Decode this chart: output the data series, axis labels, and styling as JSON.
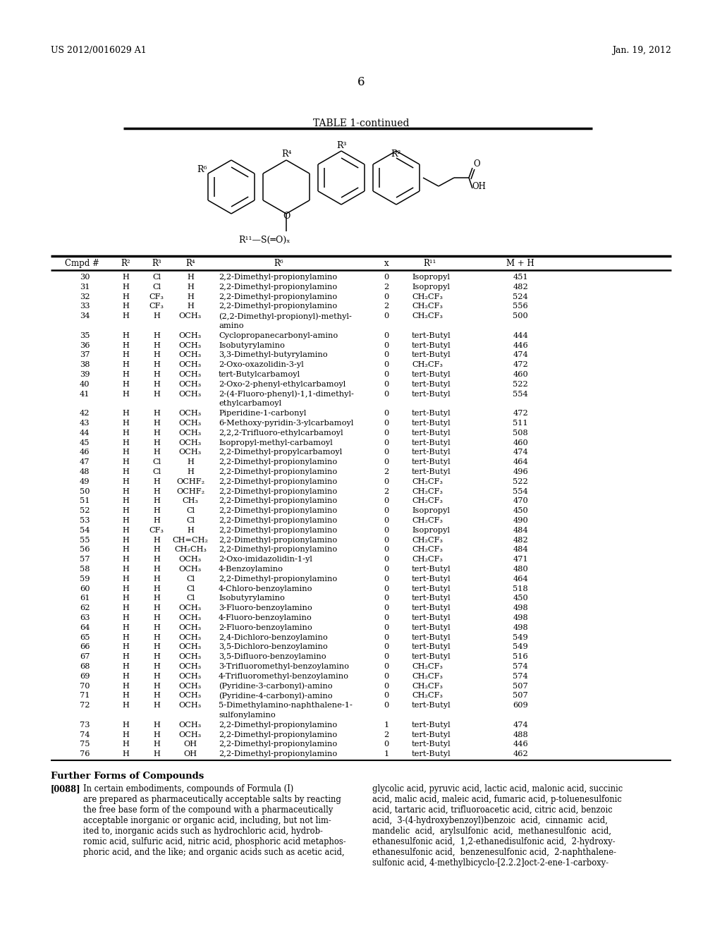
{
  "header_left": "US 2012/0016029 A1",
  "header_right": "Jan. 19, 2012",
  "page_number": "6",
  "table_title": "TABLE 1-continued",
  "rows": [
    [
      "30",
      "H",
      "Cl",
      "H",
      "2,2-Dimethyl-propionylamino",
      "0",
      "Isopropyl",
      "451",
      false
    ],
    [
      "31",
      "H",
      "Cl",
      "H",
      "2,2-Dimethyl-propionylamino",
      "2",
      "Isopropyl",
      "482",
      false
    ],
    [
      "32",
      "H",
      "CF₃",
      "H",
      "2,2-Dimethyl-propionylamino",
      "0",
      "CH₂CF₃",
      "524",
      false
    ],
    [
      "33",
      "H",
      "CF₃",
      "H",
      "2,2-Dimethyl-propionylamino",
      "2",
      "CH₂CF₃",
      "556",
      false
    ],
    [
      "34",
      "H",
      "H",
      "OCH₃",
      "(2,2-Dimethyl-propionyl)-methyl-",
      "0",
      "CH₂CF₃",
      "500",
      "amino"
    ],
    [
      "35",
      "H",
      "H",
      "OCH₃",
      "Cyclopropanecarbonyl-amino",
      "0",
      "tert-Butyl",
      "444",
      false
    ],
    [
      "36",
      "H",
      "H",
      "OCH₃",
      "Isobutyrylamino",
      "0",
      "tert-Butyl",
      "446",
      false
    ],
    [
      "37",
      "H",
      "H",
      "OCH₃",
      "3,3-Dimethyl-butyrylamino",
      "0",
      "tert-Butyl",
      "474",
      false
    ],
    [
      "38",
      "H",
      "H",
      "OCH₃",
      "2-Oxo-oxazolidin-3-yl",
      "0",
      "CH₂CF₃",
      "472",
      false
    ],
    [
      "39",
      "H",
      "H",
      "OCH₃",
      "tert-Butylcarbamoyl",
      "0",
      "tert-Butyl",
      "460",
      false
    ],
    [
      "40",
      "H",
      "H",
      "OCH₃",
      "2-Oxo-2-phenyl-ethylcarbamoyl",
      "0",
      "tert-Butyl",
      "522",
      false
    ],
    [
      "41",
      "H",
      "H",
      "OCH₃",
      "2-(4-Fluoro-phenyl)-1,1-dimethyl-",
      "0",
      "tert-Butyl",
      "554",
      "ethylcarbamoyl"
    ],
    [
      "42",
      "H",
      "H",
      "OCH₃",
      "Piperidine-1-carbonyl",
      "0",
      "tert-Butyl",
      "472",
      false
    ],
    [
      "43",
      "H",
      "H",
      "OCH₃",
      "6-Methoxy-pyridin-3-ylcarbamoyl",
      "0",
      "tert-Butyl",
      "511",
      false
    ],
    [
      "44",
      "H",
      "H",
      "OCH₃",
      "2,2,2-Trifluoro-ethylcarbamoyl",
      "0",
      "tert-Butyl",
      "508",
      false
    ],
    [
      "45",
      "H",
      "H",
      "OCH₃",
      "Isopropyl-methyl-carbamoyl",
      "0",
      "tert-Butyl",
      "460",
      false
    ],
    [
      "46",
      "H",
      "H",
      "OCH₃",
      "2,2-Dimethyl-propylcarbamoyl",
      "0",
      "tert-Butyl",
      "474",
      false
    ],
    [
      "47",
      "H",
      "Cl",
      "H",
      "2,2-Dimethyl-propionylamino",
      "0",
      "tert-Butyl",
      "464",
      false
    ],
    [
      "48",
      "H",
      "Cl",
      "H",
      "2,2-Dimethyl-propionylamino",
      "2",
      "tert-Butyl",
      "496",
      false
    ],
    [
      "49",
      "H",
      "H",
      "OCHF₂",
      "2,2-Dimethyl-propionylamino",
      "0",
      "CH₂CF₃",
      "522",
      false
    ],
    [
      "50",
      "H",
      "H",
      "OCHF₂",
      "2,2-Dimethyl-propionylamino",
      "2",
      "CH₂CF₃",
      "554",
      false
    ],
    [
      "51",
      "H",
      "H",
      "CH₃",
      "2,2-Dimethyl-propionylamino",
      "0",
      "CH₂CF₃",
      "470",
      false
    ],
    [
      "52",
      "H",
      "H",
      "Cl",
      "2,2-Dimethyl-propionylamino",
      "0",
      "Isopropyl",
      "450",
      false
    ],
    [
      "53",
      "H",
      "H",
      "Cl",
      "2,2-Dimethyl-propionylamino",
      "0",
      "CH₂CF₃",
      "490",
      false
    ],
    [
      "54",
      "H",
      "CF₃",
      "H",
      "2,2-Dimethyl-propionylamino",
      "0",
      "Isopropyl",
      "484",
      false
    ],
    [
      "55",
      "H",
      "H",
      "CH=CH₂",
      "2,2-Dimethyl-propionylamino",
      "0",
      "CH₂CF₃",
      "482",
      false
    ],
    [
      "56",
      "H",
      "H",
      "CH₂CH₃",
      "2,2-Dimethyl-propionylamino",
      "0",
      "CH₂CF₃",
      "484",
      false
    ],
    [
      "57",
      "H",
      "H",
      "OCH₃",
      "2-Oxo-imidazolidin-1-yl",
      "0",
      "CH₂CF₃",
      "471",
      false
    ],
    [
      "58",
      "H",
      "H",
      "OCH₃",
      "4-Benzoylamino",
      "0",
      "tert-Butyl",
      "480",
      false
    ],
    [
      "59",
      "H",
      "H",
      "Cl",
      "2,2-Dimethyl-propionylamino",
      "0",
      "tert-Butyl",
      "464",
      false
    ],
    [
      "60",
      "H",
      "H",
      "Cl",
      "4-Chloro-benzoylamino",
      "0",
      "tert-Butyl",
      "518",
      false
    ],
    [
      "61",
      "H",
      "H",
      "Cl",
      "Isobutyrylamino",
      "0",
      "tert-Butyl",
      "450",
      false
    ],
    [
      "62",
      "H",
      "H",
      "OCH₃",
      "3-Fluoro-benzoylamino",
      "0",
      "tert-Butyl",
      "498",
      false
    ],
    [
      "63",
      "H",
      "H",
      "OCH₃",
      "4-Fluoro-benzoylamino",
      "0",
      "tert-Butyl",
      "498",
      false
    ],
    [
      "64",
      "H",
      "H",
      "OCH₃",
      "2-Fluoro-benzoylamino",
      "0",
      "tert-Butyl",
      "498",
      false
    ],
    [
      "65",
      "H",
      "H",
      "OCH₃",
      "2,4-Dichloro-benzoylamino",
      "0",
      "tert-Butyl",
      "549",
      false
    ],
    [
      "66",
      "H",
      "H",
      "OCH₃",
      "3,5-Dichloro-benzoylamino",
      "0",
      "tert-Butyl",
      "549",
      false
    ],
    [
      "67",
      "H",
      "H",
      "OCH₃",
      "3,5-Difluoro-benzoylamino",
      "0",
      "tert-Butyl",
      "516",
      false
    ],
    [
      "68",
      "H",
      "H",
      "OCH₃",
      "3-Trifluoromethyl-benzoylamino",
      "0",
      "CH₂CF₃",
      "574",
      false
    ],
    [
      "69",
      "H",
      "H",
      "OCH₃",
      "4-Trifluoromethyl-benzoylamino",
      "0",
      "CH₂CF₃",
      "574",
      false
    ],
    [
      "70",
      "H",
      "H",
      "OCH₃",
      "(Pyridine-3-carbonyl)-amino",
      "0",
      "CH₂CF₃",
      "507",
      false
    ],
    [
      "71",
      "H",
      "H",
      "OCH₃",
      "(Pyridine-4-carbonyl)-amino",
      "0",
      "CH₂CF₃",
      "507",
      false
    ],
    [
      "72",
      "H",
      "H",
      "OCH₃",
      "5-Dimethylamino-naphthalene-1-",
      "0",
      "tert-Butyl",
      "609",
      "sulfonylamino"
    ],
    [
      "73",
      "H",
      "H",
      "OCH₃",
      "2,2-Dimethyl-propionylamino",
      "1",
      "tert-Butyl",
      "474",
      false
    ],
    [
      "74",
      "H",
      "H",
      "OCH₃",
      "2,2-Dimethyl-propionylamino",
      "2",
      "tert-Butyl",
      "488",
      false
    ],
    [
      "75",
      "H",
      "H",
      "OH",
      "2,2-Dimethyl-propionylamino",
      "0",
      "tert-Butyl",
      "446",
      false
    ],
    [
      "76",
      "H",
      "H",
      "OH",
      "2,2-Dimethyl-propionylamino",
      "1",
      "tert-Butyl",
      "462",
      false
    ]
  ],
  "footer_title": "Further Forms of Compounds",
  "footer_para": "[0088]",
  "footer_left": "In certain embodiments, compounds of Formula (I)\nare prepared as pharmaceutically acceptable salts by reacting\nthe free base form of the compound with a pharmaceutically\nacceptable inorganic or organic acid, including, but not lim-\nited to, inorganic acids such as hydrochloric acid, hydrob-\nromic acid, sulfuric acid, nitric acid, phosphoric acid metaphos-\nphoric acid, and the like; and organic acids such as acetic acid,",
  "footer_right": "glycolic acid, pyruvic acid, lactic acid, malonic acid, succinic\nacid, malic acid, maleic acid, fumaric acid, p-toluenesulfonic\nacid, tartaric acid, trifluoroacetic acid, citric acid, benzoic\nacid,  3-(4-hydroxybenzoyl)benzoic  acid,  cinnamic  acid,\nmandelic  acid,  arylsulfonic  acid,  methanesulfonic  acid,\nethanesulfonic acid,  1,2-ethanedisulfonic acid,  2-hydroxy-\nethanesulfonic acid,  benzenesulfonic acid,  2-naphthalene-\nsulfonic acid, 4-methylbicyclo-[2.2.2]oct-2-ene-1-carboxy-"
}
